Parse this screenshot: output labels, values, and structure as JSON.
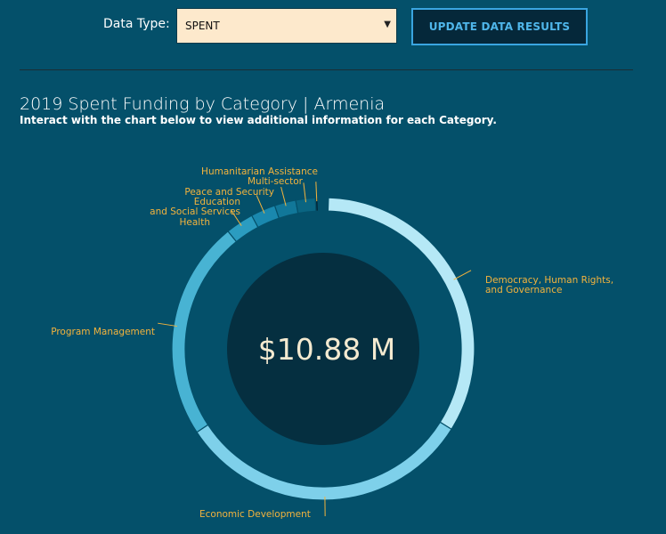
{
  "filter": {
    "label": "Data Type:",
    "selected": "SPENT",
    "update_button": "UPDATE DATA RESULTS"
  },
  "chart_data": {
    "type": "pie",
    "title": "2019 Spent Funding by Category | Armenia",
    "subtitle": "Interact with the chart below to view additional information for each Category.",
    "center_label": "$10.88 M",
    "categories": [
      "Democracy, Human Rights, and Governance",
      "Economic Development",
      "Program Management",
      "Health",
      "Education and Social Services",
      "Peace and Security",
      "Multi-sector",
      "Humanitarian Assistance"
    ],
    "values": [
      3.67,
      3.5,
      2.58,
      0.33,
      0.29,
      0.25,
      0.23,
      0.03
    ],
    "colors": [
      "#b5e8f6",
      "#7ed0ea",
      "#48b3d3",
      "#2b9cc0",
      "#1a88ae",
      "#117799",
      "#0a6582",
      "#03283a"
    ]
  }
}
